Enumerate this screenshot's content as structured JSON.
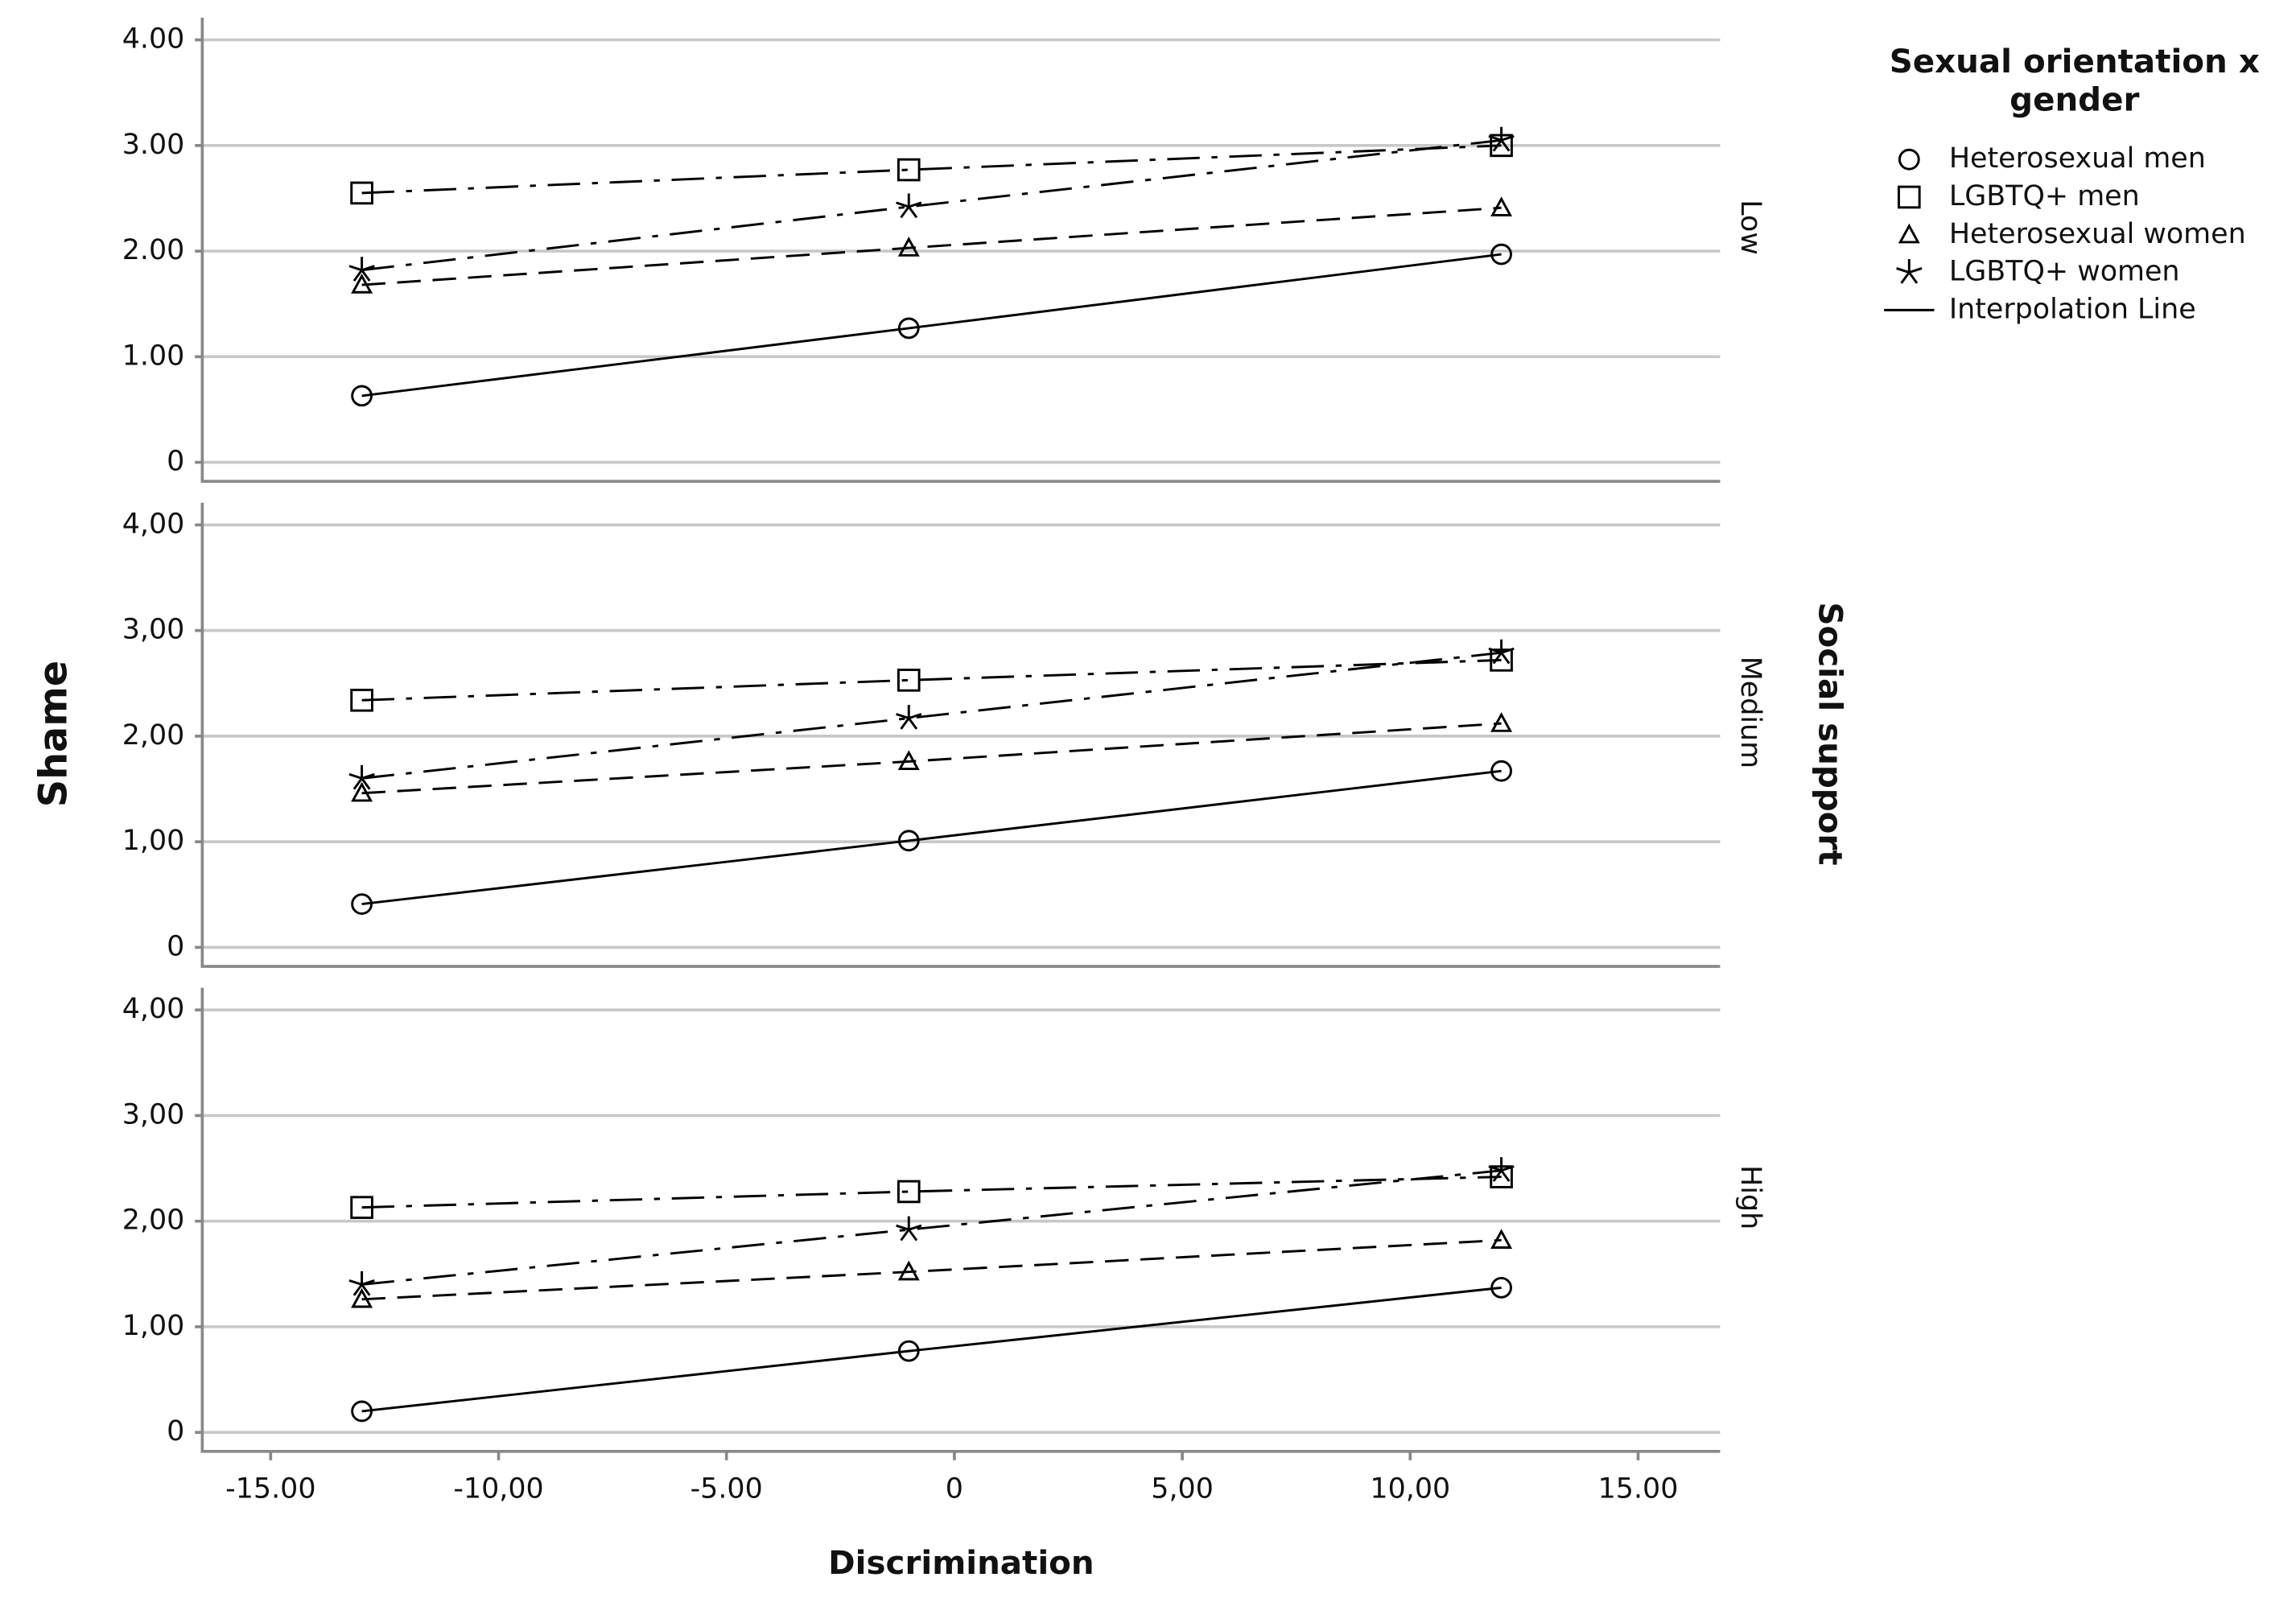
{
  "chart_data": {
    "type": "line",
    "x_label": "Discrimination",
    "y_label": "Shame",
    "facet_label": "Social support",
    "legend_title": "Sexual orientation x gender",
    "legend_line_label": "Interpolation Line",
    "x": [
      -13,
      -1,
      12
    ],
    "xlim": [
      -16.5,
      16.8
    ],
    "xticks": [
      {
        "value": -15,
        "label": "-15.00"
      },
      {
        "value": -10,
        "label": "-10,00"
      },
      {
        "value": -5,
        "label": "-5.00"
      },
      0,
      {
        "value": 5,
        "label": "5,00"
      },
      {
        "value": 10,
        "label": "10,00"
      },
      {
        "value": 15,
        "label": "15.00"
      }
    ],
    "ylim": [
      -0.18,
      4.21
    ],
    "grid": true,
    "series": [
      {
        "name": "Heterosexual men",
        "marker": "circle",
        "dash": "solid",
        "color": "#000000"
      },
      {
        "name": "LGBTQ+ men",
        "marker": "square",
        "dash": "dashdot",
        "color": "#000000"
      },
      {
        "name": "Heterosexual women",
        "marker": "triangle",
        "dash": "dashed",
        "color": "#000000"
      },
      {
        "name": "LGBTQ+ women",
        "marker": "star",
        "dash": "dashdot",
        "color": "#000000"
      }
    ],
    "panels": [
      {
        "label": "Low",
        "yticks": [
          0,
          {
            "value": 1,
            "label": "1.00"
          },
          {
            "value": 2,
            "label": "2.00"
          },
          {
            "value": 3,
            "label": "3.00"
          },
          {
            "value": 4,
            "label": "4.00"
          }
        ],
        "values": [
          [
            0.63,
            1.27,
            1.97
          ],
          [
            2.55,
            2.77,
            3.0
          ],
          [
            1.68,
            2.03,
            2.41
          ],
          [
            1.82,
            2.42,
            3.05
          ]
        ]
      },
      {
        "label": "Medium",
        "yticks": [
          0,
          {
            "value": 1,
            "label": "1,00"
          },
          {
            "value": 2,
            "label": "2,00"
          },
          {
            "value": 3,
            "label": "3,00"
          },
          {
            "value": 4,
            "label": "4,00"
          }
        ],
        "values": [
          [
            0.41,
            1.01,
            1.67
          ],
          [
            2.34,
            2.53,
            2.72
          ],
          [
            1.46,
            1.76,
            2.12
          ],
          [
            1.6,
            2.17,
            2.79
          ]
        ]
      },
      {
        "label": "High",
        "yticks": [
          0,
          {
            "value": 1,
            "label": "1,00"
          },
          {
            "value": 2,
            "label": "2,00"
          },
          {
            "value": 3,
            "label": "3,00"
          },
          {
            "value": 4,
            "label": "4,00"
          }
        ],
        "values": [
          [
            0.2,
            0.77,
            1.37
          ],
          [
            2.13,
            2.28,
            2.42
          ],
          [
            1.26,
            1.52,
            1.82
          ],
          [
            1.4,
            1.92,
            2.48
          ]
        ]
      }
    ]
  }
}
